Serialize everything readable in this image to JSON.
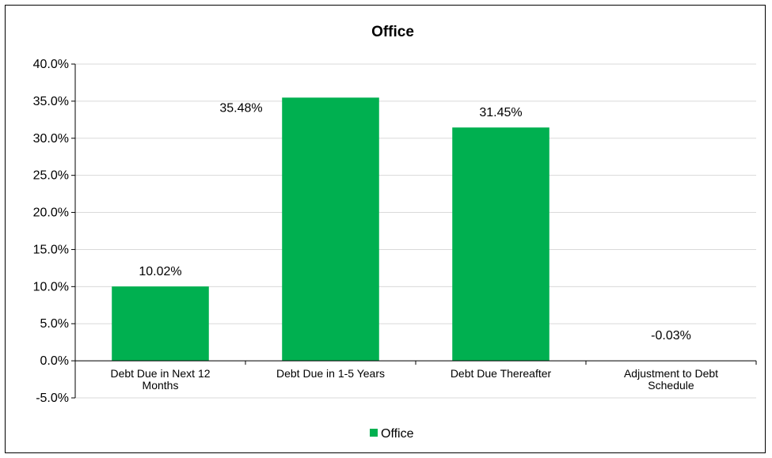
{
  "chart_data": {
    "type": "bar",
    "title": "Office",
    "categories": [
      [
        "Debt Due in Next 12",
        "Months"
      ],
      [
        "Debt Due in 1-5 Years"
      ],
      [
        "Debt Due Thereafter"
      ],
      [
        "Adjustment to Debt",
        "Schedule"
      ]
    ],
    "series": [
      {
        "name": "Office",
        "color": "#00B050",
        "values": [
          10.02,
          35.48,
          31.45,
          -0.03
        ],
        "data_labels": [
          "10.02%",
          "35.48%",
          "31.45%",
          "-0.03%"
        ]
      }
    ],
    "ylim": [
      -5,
      40
    ],
    "y_ticks": [
      40,
      35,
      30,
      25,
      20,
      15,
      10,
      5,
      0,
      -5
    ],
    "y_tick_labels": [
      "40.0%",
      "35.0%",
      "30.0%",
      "25.0%",
      "20.0%",
      "15.0%",
      "10.0%",
      "5.0%",
      "0.0%",
      "-5.0%"
    ],
    "grid": true,
    "legend_position": "bottom"
  }
}
